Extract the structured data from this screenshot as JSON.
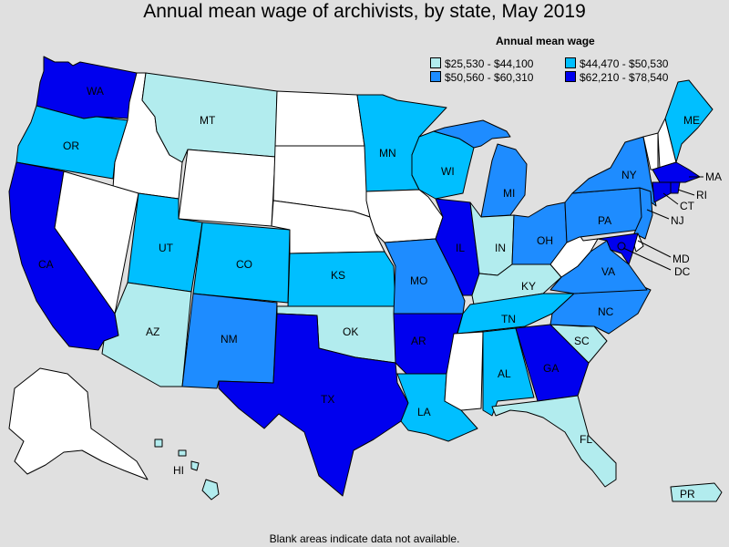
{
  "title": "Annual mean wage of archivists, by state, May 2019",
  "legend": {
    "title": "Annual mean wage",
    "items": [
      {
        "label": "$25,530 - $44,100",
        "color": "#b2ecee"
      },
      {
        "label": "$44,470 - $50,530",
        "color": "#00bfff"
      },
      {
        "label": "$50,560 - $60,310",
        "color": "#1e8cff"
      },
      {
        "label": "$62,210 - $78,540",
        "color": "#0000ee"
      }
    ]
  },
  "footnote": "Blank areas indicate data not available.",
  "colors": {
    "no_data": "#ffffff",
    "background": "#e0e0e0"
  },
  "states": [
    {
      "abbr": "WA",
      "bin": 3
    },
    {
      "abbr": "OR",
      "bin": 1
    },
    {
      "abbr": "CA",
      "bin": 3
    },
    {
      "abbr": "ID",
      "bin": -1
    },
    {
      "abbr": "NV",
      "bin": -1
    },
    {
      "abbr": "MT",
      "bin": 0
    },
    {
      "abbr": "WY",
      "bin": -1
    },
    {
      "abbr": "UT",
      "bin": 1
    },
    {
      "abbr": "AZ",
      "bin": 0
    },
    {
      "abbr": "CO",
      "bin": 1
    },
    {
      "abbr": "NM",
      "bin": 2
    },
    {
      "abbr": "ND",
      "bin": -1
    },
    {
      "abbr": "SD",
      "bin": -1
    },
    {
      "abbr": "NE",
      "bin": -1
    },
    {
      "abbr": "KS",
      "bin": 1
    },
    {
      "abbr": "OK",
      "bin": 0
    },
    {
      "abbr": "TX",
      "bin": 3
    },
    {
      "abbr": "MN",
      "bin": 1
    },
    {
      "abbr": "IA",
      "bin": -1
    },
    {
      "abbr": "MO",
      "bin": 2
    },
    {
      "abbr": "AR",
      "bin": 3
    },
    {
      "abbr": "LA",
      "bin": 1
    },
    {
      "abbr": "WI",
      "bin": 1
    },
    {
      "abbr": "IL",
      "bin": 3
    },
    {
      "abbr": "MI",
      "bin": 2
    },
    {
      "abbr": "IN",
      "bin": 0
    },
    {
      "abbr": "OH",
      "bin": 2
    },
    {
      "abbr": "KY",
      "bin": 0
    },
    {
      "abbr": "TN",
      "bin": 1
    },
    {
      "abbr": "MS",
      "bin": -1
    },
    {
      "abbr": "AL",
      "bin": 1
    },
    {
      "abbr": "GA",
      "bin": 3
    },
    {
      "abbr": "FL",
      "bin": 0
    },
    {
      "abbr": "SC",
      "bin": 0
    },
    {
      "abbr": "NC",
      "bin": 2
    },
    {
      "abbr": "VA",
      "bin": 2
    },
    {
      "abbr": "WV",
      "bin": -1
    },
    {
      "abbr": "PA",
      "bin": 2
    },
    {
      "abbr": "NY",
      "bin": 2
    },
    {
      "abbr": "NJ",
      "bin": 2
    },
    {
      "abbr": "DE",
      "bin": -1
    },
    {
      "abbr": "MD",
      "bin": 3
    },
    {
      "abbr": "DC",
      "bin": 3
    },
    {
      "abbr": "CT",
      "bin": 3
    },
    {
      "abbr": "RI",
      "bin": 3
    },
    {
      "abbr": "MA",
      "bin": 3
    },
    {
      "abbr": "VT",
      "bin": -1
    },
    {
      "abbr": "NH",
      "bin": -1
    },
    {
      "abbr": "ME",
      "bin": 1
    },
    {
      "abbr": "AK",
      "bin": -1
    },
    {
      "abbr": "HI",
      "bin": 0
    },
    {
      "abbr": "PR",
      "bin": 0
    }
  ]
}
